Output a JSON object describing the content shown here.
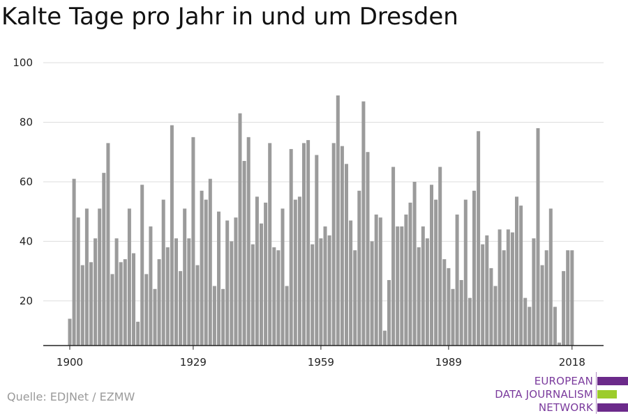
{
  "title": "Kalte Tage pro Jahr in und um Dresden",
  "source": "Quelle: EDJNet / EZMW",
  "logo": {
    "lines": [
      "EUROPEAN",
      "DATA JOURNALISM",
      "NETWORK"
    ],
    "colors": {
      "purple": "#6b2a8a",
      "green": "#9ccc2b",
      "text": "#7a3a9c"
    }
  },
  "colors": {
    "bar": "#9b9b9b",
    "grid": "#dddddd",
    "axis": "#222222"
  },
  "chart_data": {
    "type": "bar",
    "title": "Kalte Tage pro Jahr in und um Dresden",
    "xlabel": "",
    "ylabel": "",
    "ylim": [
      5,
      100
    ],
    "y_ticks": [
      20,
      40,
      60,
      80,
      100
    ],
    "x_ticks": [
      1900,
      1929,
      1959,
      1989,
      2018
    ],
    "grid": true,
    "x": [
      1900,
      1901,
      1902,
      1903,
      1904,
      1905,
      1906,
      1907,
      1908,
      1909,
      1910,
      1911,
      1912,
      1913,
      1914,
      1915,
      1916,
      1917,
      1918,
      1919,
      1920,
      1921,
      1922,
      1923,
      1924,
      1925,
      1926,
      1927,
      1928,
      1929,
      1930,
      1931,
      1932,
      1933,
      1934,
      1935,
      1936,
      1937,
      1938,
      1939,
      1940,
      1941,
      1942,
      1943,
      1944,
      1945,
      1946,
      1947,
      1948,
      1949,
      1950,
      1951,
      1952,
      1953,
      1954,
      1955,
      1956,
      1957,
      1958,
      1959,
      1960,
      1961,
      1962,
      1963,
      1964,
      1965,
      1966,
      1967,
      1968,
      1969,
      1970,
      1971,
      1972,
      1973,
      1974,
      1975,
      1976,
      1977,
      1978,
      1979,
      1980,
      1981,
      1982,
      1983,
      1984,
      1985,
      1986,
      1987,
      1988,
      1989,
      1990,
      1991,
      1992,
      1993,
      1994,
      1995,
      1996,
      1997,
      1998,
      1999,
      2000,
      2001,
      2002,
      2003,
      2004,
      2005,
      2006,
      2007,
      2008,
      2009,
      2010,
      2011,
      2012,
      2013,
      2014,
      2015,
      2016,
      2017,
      2018
    ],
    "values": [
      14,
      61,
      48,
      32,
      51,
      33,
      41,
      51,
      63,
      73,
      29,
      41,
      33,
      34,
      51,
      36,
      13,
      59,
      29,
      45,
      24,
      34,
      54,
      38,
      79,
      41,
      30,
      51,
      41,
      75,
      32,
      57,
      54,
      61,
      25,
      50,
      24,
      47,
      40,
      48,
      83,
      67,
      75,
      39,
      55,
      46,
      53,
      73,
      38,
      37,
      51,
      25,
      71,
      54,
      55,
      73,
      74,
      39,
      69,
      41,
      45,
      42,
      73,
      89,
      72,
      66,
      47,
      37,
      57,
      87,
      70,
      40,
      49,
      48,
      10,
      27,
      65,
      45,
      45,
      49,
      53,
      60,
      38,
      45,
      41,
      59,
      54,
      65,
      34,
      31,
      24,
      49,
      27,
      54,
      21,
      57,
      77,
      39,
      42,
      31,
      25,
      44,
      37,
      44,
      43,
      55,
      52,
      21,
      18,
      41,
      78,
      32,
      37,
      51,
      18,
      6,
      30,
      37,
      37
    ]
  }
}
